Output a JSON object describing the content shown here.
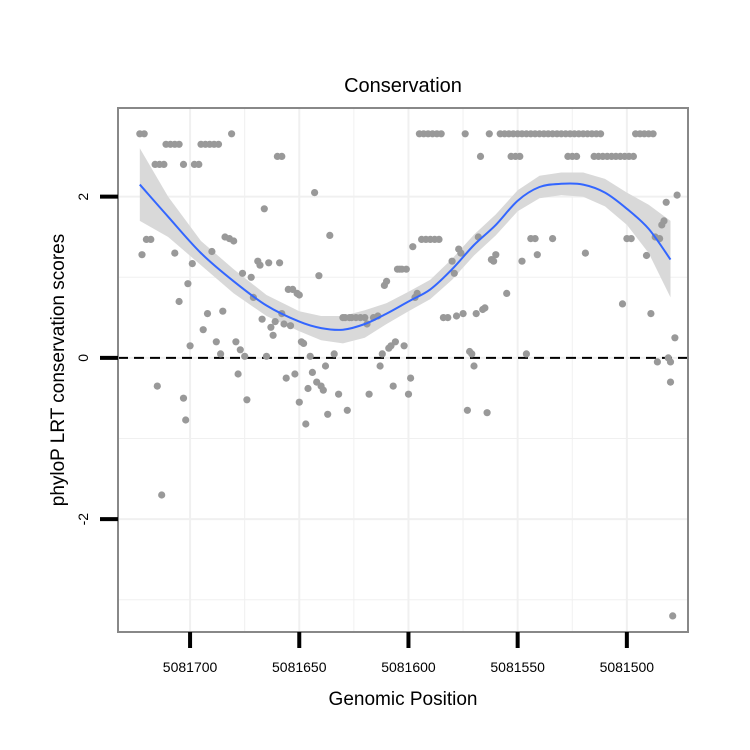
{
  "chart_data": {
    "type": "scatter",
    "title": "Conservation",
    "xlabel": "Genomic Position",
    "ylabel": "phyloP LRT conservation scores",
    "x_reversed": true,
    "xlim": [
      5081733,
      5081472
    ],
    "ylim": [
      -3.4,
      3.1
    ],
    "x_ticks": [
      5081700,
      5081650,
      5081600,
      5081550,
      5081500
    ],
    "x_tick_labels": [
      "5081700",
      "5081650",
      "5081600",
      "5081550",
      "5081500"
    ],
    "y_ticks": [
      -2,
      0,
      2
    ],
    "y_tick_labels": [
      "-2",
      "0",
      "2"
    ],
    "reference_line_y": 0,
    "grid": true,
    "colors": {
      "points": "#999999",
      "smooth": "#3366ff",
      "ribbon": "#d9d9d9",
      "panel_border": "#888888",
      "grid": "#f0f0f0"
    },
    "smooth": {
      "x": [
        5081723,
        5081710,
        5081695,
        5081680,
        5081665,
        5081650,
        5081640,
        5081630,
        5081620,
        5081610,
        5081600,
        5081590,
        5081580,
        5081570,
        5081560,
        5081550,
        5081540,
        5081530,
        5081520,
        5081510,
        5081500,
        5081490,
        5081480
      ],
      "y": [
        2.15,
        1.75,
        1.3,
        0.95,
        0.65,
        0.45,
        0.37,
        0.35,
        0.42,
        0.55,
        0.7,
        0.85,
        1.1,
        1.4,
        1.65,
        1.95,
        2.12,
        2.16,
        2.15,
        2.05,
        1.85,
        1.6,
        1.22
      ],
      "lower": [
        1.7,
        1.5,
        1.15,
        0.8,
        0.52,
        0.33,
        0.22,
        0.18,
        0.25,
        0.42,
        0.58,
        0.73,
        0.97,
        1.27,
        1.52,
        1.82,
        1.98,
        2.02,
        2.0,
        1.88,
        1.65,
        1.3,
        0.75
      ],
      "upper": [
        2.6,
        2.0,
        1.45,
        1.1,
        0.78,
        0.58,
        0.52,
        0.52,
        0.59,
        0.68,
        0.82,
        0.97,
        1.23,
        1.53,
        1.78,
        2.08,
        2.26,
        2.3,
        2.3,
        2.22,
        2.05,
        1.9,
        1.7
      ]
    },
    "points": [
      {
        "x": 5081723,
        "y": 2.78
      },
      {
        "x": 5081721,
        "y": 2.78
      },
      {
        "x": 5081722,
        "y": 1.28
      },
      {
        "x": 5081720,
        "y": 1.47
      },
      {
        "x": 5081718,
        "y": 1.47
      },
      {
        "x": 5081716,
        "y": 2.4
      },
      {
        "x": 5081714,
        "y": 2.4
      },
      {
        "x": 5081712,
        "y": 2.4
      },
      {
        "x": 5081715,
        "y": -0.35
      },
      {
        "x": 5081713,
        "y": -1.7
      },
      {
        "x": 5081711,
        "y": 2.65
      },
      {
        "x": 5081709,
        "y": 2.65
      },
      {
        "x": 5081707,
        "y": 2.65
      },
      {
        "x": 5081705,
        "y": 2.65
      },
      {
        "x": 5081707,
        "y": 1.3
      },
      {
        "x": 5081705,
        "y": 0.7
      },
      {
        "x": 5081703,
        "y": 2.4
      },
      {
        "x": 5081703,
        "y": -0.5
      },
      {
        "x": 5081702,
        "y": -0.77
      },
      {
        "x": 5081701,
        "y": 0.92
      },
      {
        "x": 5081700,
        "y": 0.15
      },
      {
        "x": 5081699,
        "y": 1.17
      },
      {
        "x": 5081698,
        "y": 2.4
      },
      {
        "x": 5081696,
        "y": 2.4
      },
      {
        "x": 5081695,
        "y": 2.65
      },
      {
        "x": 5081693,
        "y": 2.65
      },
      {
        "x": 5081691,
        "y": 2.65
      },
      {
        "x": 5081689,
        "y": 2.65
      },
      {
        "x": 5081687,
        "y": 2.65
      },
      {
        "x": 5081694,
        "y": 0.35
      },
      {
        "x": 5081692,
        "y": 0.55
      },
      {
        "x": 5081690,
        "y": 1.32
      },
      {
        "x": 5081688,
        "y": 0.2
      },
      {
        "x": 5081686,
        "y": 0.05
      },
      {
        "x": 5081685,
        "y": 0.58
      },
      {
        "x": 5081684,
        "y": 1.5
      },
      {
        "x": 5081682,
        "y": 1.48
      },
      {
        "x": 5081681,
        "y": 2.78
      },
      {
        "x": 5081680,
        "y": 1.45
      },
      {
        "x": 5081679,
        "y": 0.2
      },
      {
        "x": 5081678,
        "y": -0.2
      },
      {
        "x": 5081677,
        "y": 0.1
      },
      {
        "x": 5081676,
        "y": 1.05
      },
      {
        "x": 5081675,
        "y": 0.02
      },
      {
        "x": 5081674,
        "y": -0.52
      },
      {
        "x": 5081672,
        "y": 1.0
      },
      {
        "x": 5081671,
        "y": 0.75
      },
      {
        "x": 5081669,
        "y": 1.2
      },
      {
        "x": 5081668,
        "y": 1.15
      },
      {
        "x": 5081667,
        "y": 0.48
      },
      {
        "x": 5081666,
        "y": 1.85
      },
      {
        "x": 5081665,
        "y": 0.02
      },
      {
        "x": 5081664,
        "y": 1.18
      },
      {
        "x": 5081663,
        "y": 0.38
      },
      {
        "x": 5081662,
        "y": 0.28
      },
      {
        "x": 5081661,
        "y": 0.45
      },
      {
        "x": 5081660,
        "y": 2.5
      },
      {
        "x": 5081658,
        "y": 2.5
      },
      {
        "x": 5081659,
        "y": 1.18
      },
      {
        "x": 5081658,
        "y": 0.55
      },
      {
        "x": 5081657,
        "y": 0.42
      },
      {
        "x": 5081656,
        "y": -0.25
      },
      {
        "x": 5081655,
        "y": 0.85
      },
      {
        "x": 5081654,
        "y": 0.4
      },
      {
        "x": 5081653,
        "y": 0.85
      },
      {
        "x": 5081652,
        "y": -0.2
      },
      {
        "x": 5081651,
        "y": 0.8
      },
      {
        "x": 5081650,
        "y": 0.78
      },
      {
        "x": 5081650,
        "y": -0.55
      },
      {
        "x": 5081649,
        "y": 0.2
      },
      {
        "x": 5081648,
        "y": 0.18
      },
      {
        "x": 5081647,
        "y": -0.82
      },
      {
        "x": 5081646,
        "y": -0.38
      },
      {
        "x": 5081645,
        "y": 0.02
      },
      {
        "x": 5081644,
        "y": -0.18
      },
      {
        "x": 5081643,
        "y": 2.05
      },
      {
        "x": 5081642,
        "y": -0.3
      },
      {
        "x": 5081641,
        "y": 1.02
      },
      {
        "x": 5081640,
        "y": -0.35
      },
      {
        "x": 5081639,
        "y": -0.4
      },
      {
        "x": 5081638,
        "y": -0.1
      },
      {
        "x": 5081637,
        "y": -0.7
      },
      {
        "x": 5081636,
        "y": 1.52
      },
      {
        "x": 5081634,
        "y": 0.05
      },
      {
        "x": 5081632,
        "y": -0.45
      },
      {
        "x": 5081630,
        "y": 0.5
      },
      {
        "x": 5081629,
        "y": 0.5
      },
      {
        "x": 5081628,
        "y": -0.65
      },
      {
        "x": 5081627,
        "y": 0.5
      },
      {
        "x": 5081626,
        "y": 0.5
      },
      {
        "x": 5081624,
        "y": 0.5
      },
      {
        "x": 5081622,
        "y": 0.5
      },
      {
        "x": 5081620,
        "y": 0.5
      },
      {
        "x": 5081619,
        "y": 0.42
      },
      {
        "x": 5081618,
        "y": -0.45
      },
      {
        "x": 5081616,
        "y": 0.5
      },
      {
        "x": 5081614,
        "y": 0.52
      },
      {
        "x": 5081613,
        "y": -0.1
      },
      {
        "x": 5081612,
        "y": 0.05
      },
      {
        "x": 5081611,
        "y": 0.9
      },
      {
        "x": 5081610,
        "y": 0.95
      },
      {
        "x": 5081609,
        "y": 0.12
      },
      {
        "x": 5081608,
        "y": 0.15
      },
      {
        "x": 5081607,
        "y": -0.35
      },
      {
        "x": 5081606,
        "y": 0.2
      },
      {
        "x": 5081605,
        "y": 1.1
      },
      {
        "x": 5081604,
        "y": 1.1
      },
      {
        "x": 5081603,
        "y": 1.1
      },
      {
        "x": 5081602,
        "y": 0.15
      },
      {
        "x": 5081601,
        "y": 1.1
      },
      {
        "x": 5081600,
        "y": -0.45
      },
      {
        "x": 5081599,
        "y": -0.25
      },
      {
        "x": 5081598,
        "y": 1.38
      },
      {
        "x": 5081597,
        "y": 0.75
      },
      {
        "x": 5081596,
        "y": 0.8
      },
      {
        "x": 5081595,
        "y": 2.78
      },
      {
        "x": 5081593,
        "y": 2.78
      },
      {
        "x": 5081594,
        "y": 1.47
      },
      {
        "x": 5081592,
        "y": 1.47
      },
      {
        "x": 5081590,
        "y": 1.47
      },
      {
        "x": 5081591,
        "y": 2.78
      },
      {
        "x": 5081589,
        "y": 2.78
      },
      {
        "x": 5081587,
        "y": 2.78
      },
      {
        "x": 5081585,
        "y": 2.78
      },
      {
        "x": 5081588,
        "y": 1.47
      },
      {
        "x": 5081586,
        "y": 1.47
      },
      {
        "x": 5081584,
        "y": 0.5
      },
      {
        "x": 5081582,
        "y": 0.5
      },
      {
        "x": 5081580,
        "y": 1.2
      },
      {
        "x": 5081579,
        "y": 1.05
      },
      {
        "x": 5081578,
        "y": 0.52
      },
      {
        "x": 5081577,
        "y": 1.35
      },
      {
        "x": 5081576,
        "y": 1.3
      },
      {
        "x": 5081575,
        "y": 0.55
      },
      {
        "x": 5081574,
        "y": 2.78
      },
      {
        "x": 5081573,
        "y": -0.65
      },
      {
        "x": 5081572,
        "y": 0.08
      },
      {
        "x": 5081571,
        "y": 0.05
      },
      {
        "x": 5081570,
        "y": -0.1
      },
      {
        "x": 5081569,
        "y": 0.55
      },
      {
        "x": 5081568,
        "y": 1.5
      },
      {
        "x": 5081567,
        "y": 2.5
      },
      {
        "x": 5081566,
        "y": 0.6
      },
      {
        "x": 5081565,
        "y": 0.62
      },
      {
        "x": 5081564,
        "y": -0.68
      },
      {
        "x": 5081563,
        "y": 2.78
      },
      {
        "x": 5081562,
        "y": 1.22
      },
      {
        "x": 5081561,
        "y": 1.2
      },
      {
        "x": 5081560,
        "y": 1.28
      },
      {
        "x": 5081558,
        "y": 2.78
      },
      {
        "x": 5081556,
        "y": 2.78
      },
      {
        "x": 5081554,
        "y": 2.78
      },
      {
        "x": 5081552,
        "y": 2.78
      },
      {
        "x": 5081550,
        "y": 2.78
      },
      {
        "x": 5081548,
        "y": 2.78
      },
      {
        "x": 5081553,
        "y": 2.5
      },
      {
        "x": 5081551,
        "y": 2.5
      },
      {
        "x": 5081549,
        "y": 2.5
      },
      {
        "x": 5081555,
        "y": 0.8
      },
      {
        "x": 5081548,
        "y": 1.2
      },
      {
        "x": 5081546,
        "y": 0.05
      },
      {
        "x": 5081544,
        "y": 1.48
      },
      {
        "x": 5081542,
        "y": 1.48
      },
      {
        "x": 5081541,
        "y": 1.28
      },
      {
        "x": 5081546,
        "y": 2.78
      },
      {
        "x": 5081544,
        "y": 2.78
      },
      {
        "x": 5081542,
        "y": 2.78
      },
      {
        "x": 5081540,
        "y": 2.78
      },
      {
        "x": 5081538,
        "y": 2.78
      },
      {
        "x": 5081536,
        "y": 2.78
      },
      {
        "x": 5081534,
        "y": 2.78
      },
      {
        "x": 5081532,
        "y": 2.78
      },
      {
        "x": 5081530,
        "y": 2.78
      },
      {
        "x": 5081528,
        "y": 2.78
      },
      {
        "x": 5081526,
        "y": 2.78
      },
      {
        "x": 5081524,
        "y": 2.78
      },
      {
        "x": 5081522,
        "y": 2.78
      },
      {
        "x": 5081520,
        "y": 2.78
      },
      {
        "x": 5081518,
        "y": 2.78
      },
      {
        "x": 5081516,
        "y": 2.78
      },
      {
        "x": 5081514,
        "y": 2.78
      },
      {
        "x": 5081512,
        "y": 2.78
      },
      {
        "x": 5081534,
        "y": 1.48
      },
      {
        "x": 5081527,
        "y": 2.5
      },
      {
        "x": 5081525,
        "y": 2.5
      },
      {
        "x": 5081523,
        "y": 2.5
      },
      {
        "x": 5081519,
        "y": 1.3
      },
      {
        "x": 5081515,
        "y": 2.5
      },
      {
        "x": 5081513,
        "y": 2.5
      },
      {
        "x": 5081511,
        "y": 2.5
      },
      {
        "x": 5081509,
        "y": 2.5
      },
      {
        "x": 5081507,
        "y": 2.5
      },
      {
        "x": 5081505,
        "y": 2.5
      },
      {
        "x": 5081503,
        "y": 2.5
      },
      {
        "x": 5081501,
        "y": 2.5
      },
      {
        "x": 5081499,
        "y": 2.5
      },
      {
        "x": 5081497,
        "y": 2.5
      },
      {
        "x": 5081502,
        "y": 0.67
      },
      {
        "x": 5081500,
        "y": 1.48
      },
      {
        "x": 5081498,
        "y": 1.48
      },
      {
        "x": 5081496,
        "y": 2.78
      },
      {
        "x": 5081494,
        "y": 2.78
      },
      {
        "x": 5081492,
        "y": 2.78
      },
      {
        "x": 5081490,
        "y": 2.78
      },
      {
        "x": 5081488,
        "y": 2.78
      },
      {
        "x": 5081491,
        "y": 1.27
      },
      {
        "x": 5081489,
        "y": 0.55
      },
      {
        "x": 5081487,
        "y": 1.5
      },
      {
        "x": 5081485,
        "y": 1.48
      },
      {
        "x": 5081486,
        "y": -0.05
      },
      {
        "x": 5081484,
        "y": 1.65
      },
      {
        "x": 5081483,
        "y": 1.7
      },
      {
        "x": 5081482,
        "y": 1.93
      },
      {
        "x": 5081481,
        "y": 0.0
      },
      {
        "x": 5081480,
        "y": -0.05
      },
      {
        "x": 5081480,
        "y": -0.3
      },
      {
        "x": 5081479,
        "y": -3.2
      },
      {
        "x": 5081478,
        "y": 0.25
      },
      {
        "x": 5081477,
        "y": 2.02
      }
    ]
  }
}
